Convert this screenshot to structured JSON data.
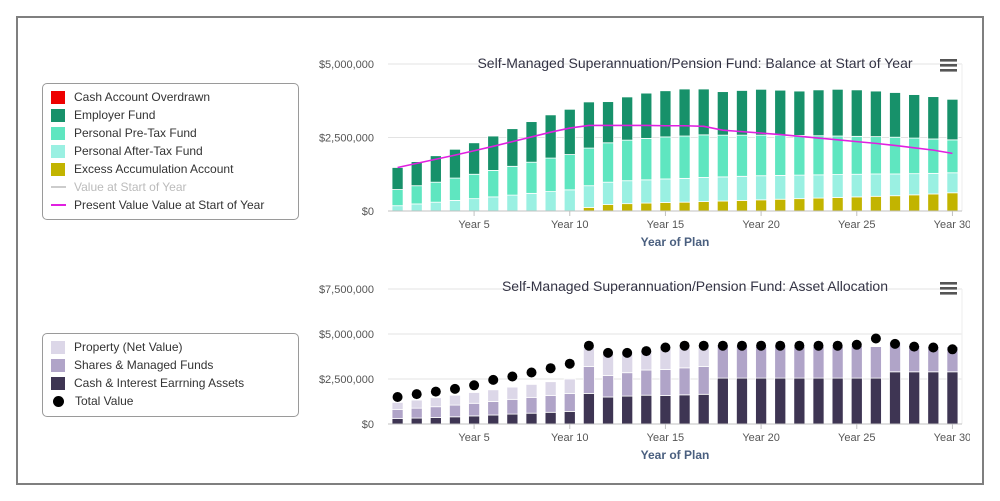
{
  "chart_data": [
    {
      "type": "bar",
      "stacked": true,
      "title": "Self-Managed Superannuation/Pension Fund: Balance at Start of Year",
      "xlabel": "Year of Plan",
      "ylabel": "",
      "ylim": [
        0,
        5000000
      ],
      "y_ticks": [
        "$0",
        "$2,500,000",
        "$5,000,000"
      ],
      "x_tick_labels": [
        "Year 5",
        "Year 10",
        "Year 15",
        "Year 20",
        "Year 25",
        "Year 30"
      ],
      "x_tick_years": [
        5,
        10,
        15,
        20,
        25,
        30
      ],
      "x": [
        1,
        2,
        3,
        4,
        5,
        6,
        7,
        8,
        9,
        10,
        11,
        12,
        13,
        14,
        15,
        16,
        17,
        18,
        19,
        20,
        21,
        22,
        23,
        24,
        25,
        26,
        27,
        28,
        29,
        30
      ],
      "series": [
        {
          "name": "Cash Account Overdrawn",
          "color": "#ee0000",
          "values": [
            0,
            0,
            0,
            0,
            0,
            0,
            0,
            0,
            0,
            0,
            0,
            0,
            0,
            0,
            0,
            0,
            0,
            0,
            0,
            0,
            0,
            0,
            0,
            0,
            0,
            0,
            0,
            0,
            0,
            0
          ]
        },
        {
          "name": "Excess Accumulation Account",
          "color": "#c2b400",
          "values": [
            0,
            0,
            0,
            0,
            0,
            0,
            0,
            0,
            0,
            0,
            120000,
            220000,
            250000,
            270000,
            290000,
            300000,
            320000,
            340000,
            360000,
            380000,
            400000,
            420000,
            440000,
            460000,
            480000,
            500000,
            520000,
            550000,
            580000,
            620000
          ]
        },
        {
          "name": "Personal After-Tax Fund",
          "color": "#9af0e2",
          "values": [
            180000,
            240000,
            300000,
            360000,
            420000,
            480000,
            540000,
            600000,
            660000,
            720000,
            740000,
            760000,
            780000,
            790000,
            800000,
            810000,
            820000,
            820000,
            820000,
            820000,
            810000,
            800000,
            790000,
            780000,
            770000,
            760000,
            740000,
            720000,
            700000,
            680000
          ]
        },
        {
          "name": "Personal Pre-Tax Fund",
          "color": "#5fe6c0",
          "values": [
            550000,
            620000,
            680000,
            760000,
            830000,
            900000,
            980000,
            1060000,
            1140000,
            1200000,
            1280000,
            1340000,
            1380000,
            1410000,
            1430000,
            1440000,
            1450000,
            1420000,
            1400000,
            1380000,
            1370000,
            1350000,
            1330000,
            1310000,
            1290000,
            1270000,
            1250000,
            1210000,
            1170000,
            1120000
          ]
        },
        {
          "name": "Employer Fund",
          "color": "#17916a",
          "values": [
            750000,
            820000,
            900000,
            980000,
            1070000,
            1170000,
            1280000,
            1380000,
            1470000,
            1540000,
            1570000,
            1400000,
            1470000,
            1540000,
            1570000,
            1600000,
            1560000,
            1480000,
            1520000,
            1560000,
            1530000,
            1510000,
            1560000,
            1590000,
            1580000,
            1550000,
            1520000,
            1480000,
            1440000,
            1380000
          ]
        }
      ],
      "lines": [
        {
          "name": "Value at Start of Year",
          "color": "#cccccc",
          "visible": false,
          "values": []
        },
        {
          "name": "Present Value Value at Start of Year",
          "color": "#e020e0",
          "values": [
            1480000,
            1620000,
            1760000,
            1900000,
            2050000,
            2200000,
            2360000,
            2520000,
            2680000,
            2820000,
            2910000,
            2910000,
            2910000,
            2910000,
            2900000,
            2900000,
            2880000,
            2750000,
            2700000,
            2650000,
            2600000,
            2540000,
            2480000,
            2420000,
            2360000,
            2300000,
            2230000,
            2150000,
            2070000,
            1960000
          ]
        }
      ],
      "legend": {
        "placement": "left",
        "items": [
          {
            "label": "Cash Account Overdrawn",
            "color": "#ee0000",
            "kind": "box",
            "dim": false
          },
          {
            "label": "Employer Fund",
            "color": "#17916a",
            "kind": "box",
            "dim": false
          },
          {
            "label": "Personal Pre-Tax Fund",
            "color": "#5fe6c0",
            "kind": "box",
            "dim": false
          },
          {
            "label": "Personal After-Tax Fund",
            "color": "#9af0e2",
            "kind": "box",
            "dim": false
          },
          {
            "label": "Excess Accumulation Account",
            "color": "#c2b400",
            "kind": "box",
            "dim": false
          },
          {
            "label": "Value at Start of Year",
            "color": "#cccccc",
            "kind": "line",
            "dim": true
          },
          {
            "label": "Present Value Value at Start of Year",
            "color": "#e020e0",
            "kind": "line",
            "dim": false
          }
        ]
      },
      "grid": true
    },
    {
      "type": "bar",
      "stacked": true,
      "title": "Self-Managed Superannuation/Pension Fund: Asset Allocation",
      "xlabel": "Year of Plan",
      "ylabel": "",
      "ylim": [
        0,
        7500000
      ],
      "y_ticks": [
        "$0",
        "$2,500,000",
        "$5,000,000",
        "$7,500,000"
      ],
      "x_tick_labels": [
        "Year 5",
        "Year 10",
        "Year 15",
        "Year 20",
        "Year 25",
        "Year 30"
      ],
      "x_tick_years": [
        5,
        10,
        15,
        20,
        25,
        30
      ],
      "x": [
        1,
        2,
        3,
        4,
        5,
        6,
        7,
        8,
        9,
        10,
        11,
        12,
        13,
        14,
        15,
        16,
        17,
        18,
        19,
        20,
        21,
        22,
        23,
        24,
        25,
        26,
        27,
        28,
        29,
        30
      ],
      "series": [
        {
          "name": "Cash & Interest Earrning Assets",
          "color": "#3e3553",
          "values": [
            300000,
            330000,
            360000,
            400000,
            450000,
            500000,
            550000,
            600000,
            650000,
            700000,
            1700000,
            1500000,
            1550000,
            1600000,
            1580000,
            1620000,
            1650000,
            2550000,
            2550000,
            2550000,
            2550000,
            2550000,
            2550000,
            2550000,
            2550000,
            2550000,
            2900000,
            2900000,
            2900000,
            2900000
          ]
        },
        {
          "name": "Shares & Managed Funds",
          "color": "#b0a4c8",
          "values": [
            500000,
            550000,
            600000,
            650000,
            700000,
            750000,
            820000,
            880000,
            940000,
            1000000,
            1500000,
            1200000,
            1300000,
            1400000,
            1450000,
            1500000,
            1550000,
            1850000,
            1800000,
            1750000,
            1800000,
            1750000,
            1750000,
            1750000,
            1800000,
            1750000,
            1650000,
            1450000,
            1400000,
            1400000
          ]
        },
        {
          "name": "Property (Net Value)",
          "color": "#dcd7e8",
          "values": [
            400000,
            450000,
            500000,
            550000,
            600000,
            650000,
            680000,
            720000,
            760000,
            800000,
            1100000,
            1200000,
            1100000,
            1050000,
            1150000,
            1150000,
            1050000,
            0,
            0,
            0,
            0,
            0,
            0,
            0,
            0,
            0,
            0,
            0,
            0,
            0
          ]
        }
      ],
      "points": {
        "name": "Total Value",
        "color": "#000000",
        "values": [
          1500000,
          1660000,
          1800000,
          1950000,
          2150000,
          2450000,
          2640000,
          2860000,
          3100000,
          3350000,
          4350000,
          3950000,
          3950000,
          4050000,
          4250000,
          4350000,
          4350000,
          4350000,
          4350000,
          4350000,
          4350000,
          4350000,
          4350000,
          4350000,
          4400000,
          4750000,
          4450000,
          4300000,
          4250000,
          4150000
        ]
      },
      "legend": {
        "placement": "left",
        "items": [
          {
            "label": "Property (Net Value)",
            "color": "#dcd7e8",
            "kind": "box",
            "dim": false
          },
          {
            "label": "Shares & Managed Funds",
            "color": "#b0a4c8",
            "kind": "box",
            "dim": false
          },
          {
            "label": "Cash & Interest Earrning Assets",
            "color": "#3e3553",
            "kind": "box",
            "dim": false
          },
          {
            "label": "Total Value",
            "color": "#000000",
            "kind": "dot",
            "dim": false
          }
        ]
      },
      "grid": true
    }
  ],
  "menu_icon": "hamburger-menu-icon"
}
